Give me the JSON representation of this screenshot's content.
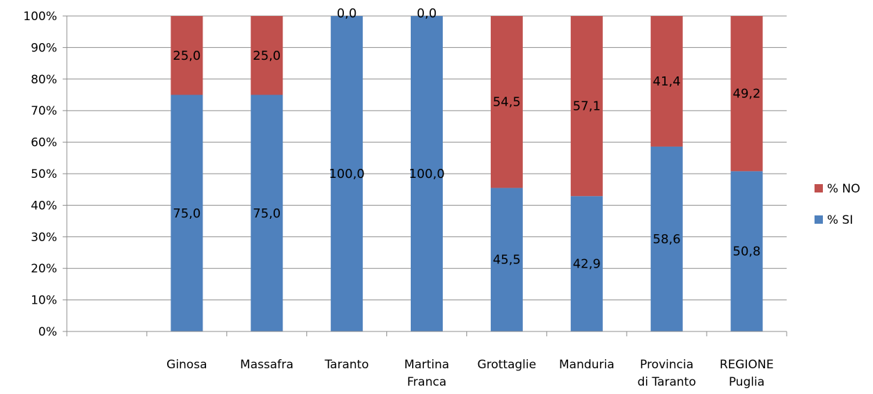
{
  "chart_data": {
    "type": "bar",
    "stacked": true,
    "stack_mode": "percent",
    "categories": [
      "",
      "Ginosa",
      "Massafra",
      "Taranto",
      "Martina\nFranca",
      "Grottaglie",
      "Manduria",
      "Provincia\ndi Taranto",
      "REGIONE\nPuglia"
    ],
    "series": [
      {
        "name": "% SI",
        "color": "#4F81BD",
        "values": [
          null,
          75.0,
          75.0,
          100.0,
          100.0,
          45.5,
          42.9,
          58.6,
          50.8
        ],
        "labels": [
          "",
          "75,0",
          "75,0",
          "100,0",
          "100,0",
          "45,5",
          "42,9",
          "58,6",
          "50,8"
        ]
      },
      {
        "name": "% NO",
        "color": "#C0504D",
        "values": [
          null,
          25.0,
          25.0,
          0.0,
          0.0,
          54.5,
          57.1,
          41.4,
          49.2
        ],
        "labels": [
          "",
          "25,0",
          "25,0",
          "0,0",
          "0,0",
          "54,5",
          "57,1",
          "41,4",
          "49,2"
        ]
      }
    ],
    "y_ticks": [
      "0%",
      "10%",
      "20%",
      "30%",
      "40%",
      "50%",
      "60%",
      "70%",
      "80%",
      "90%",
      "100%"
    ],
    "ylim": [
      0,
      100
    ],
    "grid": true,
    "legend_position": "right",
    "legend_order": [
      "% NO",
      "% SI"
    ]
  }
}
